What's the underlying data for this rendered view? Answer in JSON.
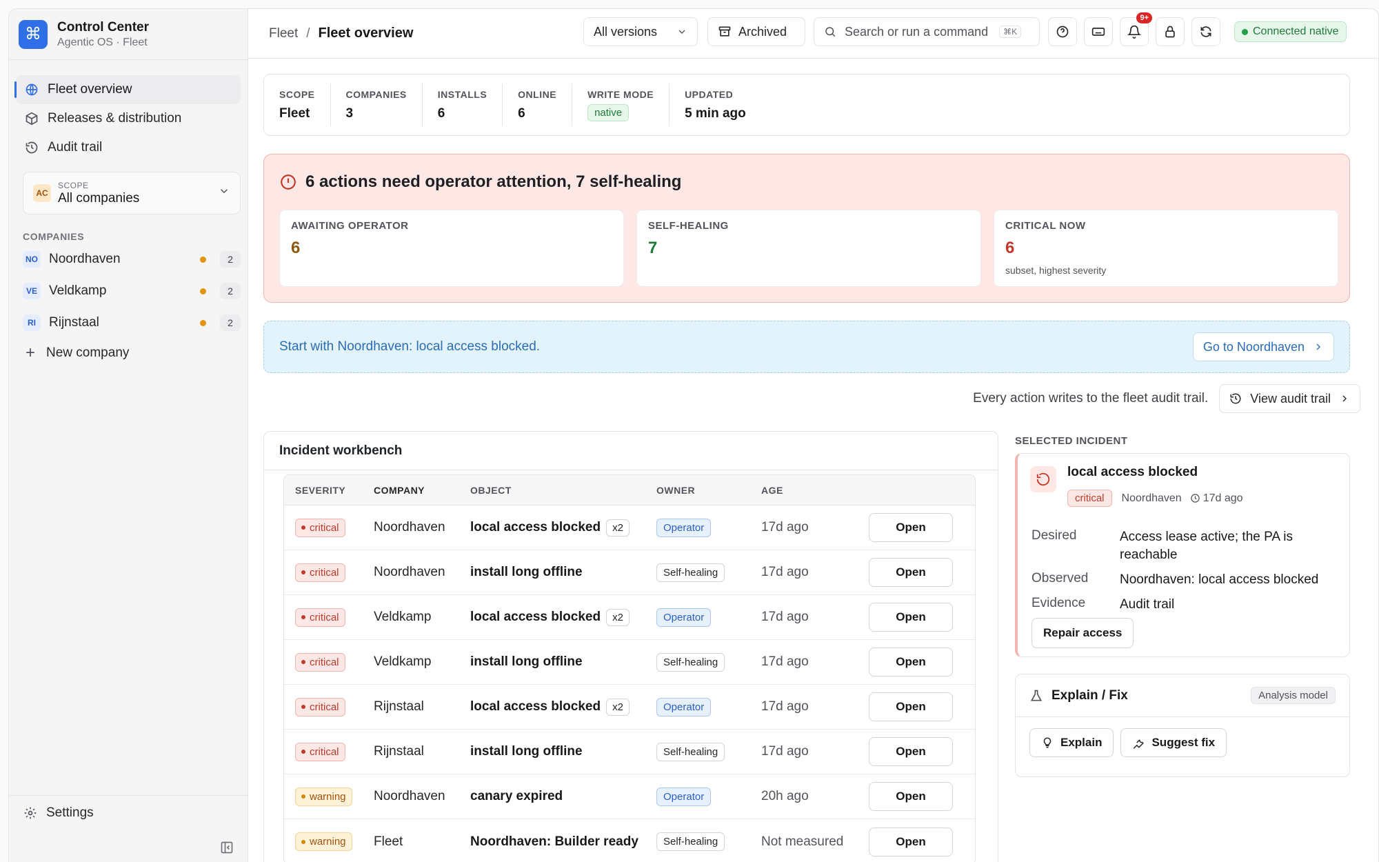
{
  "app": {
    "title": "Control Center",
    "subtitle": "Agentic OS · Fleet"
  },
  "sidebar": {
    "nav": [
      {
        "label": "Fleet overview",
        "icon": "globe-icon",
        "active": true
      },
      {
        "label": "Releases & distribution",
        "icon": "package-icon",
        "active": false
      },
      {
        "label": "Audit trail",
        "icon": "history-icon",
        "active": false
      }
    ],
    "scope": {
      "badge": "AC",
      "label": "SCOPE",
      "value": "All companies"
    },
    "companies_title": "COMPANIES",
    "companies": [
      {
        "badge": "NO",
        "name": "Noordhaven",
        "count": "2"
      },
      {
        "badge": "VE",
        "name": "Veldkamp",
        "count": "2"
      },
      {
        "badge": "RI",
        "name": "Rijnstaal",
        "count": "2"
      }
    ],
    "new_company": "New company",
    "settings": "Settings"
  },
  "topbar": {
    "breadcrumb_root": "Fleet",
    "breadcrumb_sep": "/",
    "breadcrumb_current": "Fleet overview",
    "versions": "All versions",
    "archived": "Archived",
    "search_placeholder": "Search or run a command",
    "search_shortcut": "⌘K",
    "notifications_badge": "9+",
    "connection": "Connected native"
  },
  "stats": [
    {
      "label": "SCOPE",
      "value": "Fleet"
    },
    {
      "label": "COMPANIES",
      "value": "3"
    },
    {
      "label": "INSTALLS",
      "value": "6"
    },
    {
      "label": "ONLINE",
      "value": "6"
    },
    {
      "label": "WRITE MODE",
      "value": "native"
    },
    {
      "label": "UPDATED",
      "value": "5 min ago"
    }
  ],
  "alert": {
    "title": "6 actions need operator attention, 7 self-healing",
    "cards": [
      {
        "label": "AWAITING OPERATOR",
        "value": "6",
        "sub": "",
        "color": "#8a5a0b"
      },
      {
        "label": "SELF-HEALING",
        "value": "7",
        "sub": "",
        "color": "#1f7a3a"
      },
      {
        "label": "CRITICAL NOW",
        "value": "6",
        "sub": "subset, highest severity",
        "color": "#c0392b"
      }
    ]
  },
  "banner": {
    "text": "Start with Noordhaven: local access blocked.",
    "button": "Go to Noordhaven"
  },
  "audit": {
    "text": "Every action writes to the fleet audit trail.",
    "button": "View audit trail"
  },
  "workbench": {
    "title": "Incident workbench",
    "headers": [
      "SEVERITY",
      "COMPANY",
      "OBJECT",
      "OWNER",
      "AGE"
    ],
    "open_label": "Open",
    "rows": [
      {
        "severity": "critical",
        "company": "Noordhaven",
        "object": "local access blocked",
        "count": "x2",
        "owner": "Operator",
        "age": "17d ago"
      },
      {
        "severity": "critical",
        "company": "Noordhaven",
        "object": "install long offline",
        "count": "",
        "owner": "Self-healing",
        "age": "17d ago"
      },
      {
        "severity": "critical",
        "company": "Veldkamp",
        "object": "local access blocked",
        "count": "x2",
        "owner": "Operator",
        "age": "17d ago"
      },
      {
        "severity": "critical",
        "company": "Veldkamp",
        "object": "install long offline",
        "count": "",
        "owner": "Self-healing",
        "age": "17d ago"
      },
      {
        "severity": "critical",
        "company": "Rijnstaal",
        "object": "local access blocked",
        "count": "x2",
        "owner": "Operator",
        "age": "17d ago"
      },
      {
        "severity": "critical",
        "company": "Rijnstaal",
        "object": "install long offline",
        "count": "",
        "owner": "Self-healing",
        "age": "17d ago"
      },
      {
        "severity": "warning",
        "company": "Noordhaven",
        "object": "canary expired",
        "count": "",
        "owner": "Operator",
        "age": "20h ago"
      },
      {
        "severity": "warning",
        "company": "Fleet",
        "object": "Noordhaven: Builder ready",
        "count": "",
        "owner": "Self-healing",
        "age": "Not measured"
      }
    ]
  },
  "selected": {
    "section_title": "SELECTED INCIDENT",
    "title": "local access blocked",
    "severity": "critical",
    "company": "Noordhaven",
    "age": "17d ago",
    "fields": [
      {
        "k": "Desired",
        "v": "Access lease active; the PA is reachable"
      },
      {
        "k": "Observed",
        "v": "Noordhaven: local access blocked"
      },
      {
        "k": "Evidence",
        "v": "Audit trail"
      }
    ],
    "action": "Repair access"
  },
  "explain": {
    "title": "Explain / Fix",
    "model": "Analysis model",
    "explain_btn": "Explain",
    "fix_btn": "Suggest fix"
  }
}
